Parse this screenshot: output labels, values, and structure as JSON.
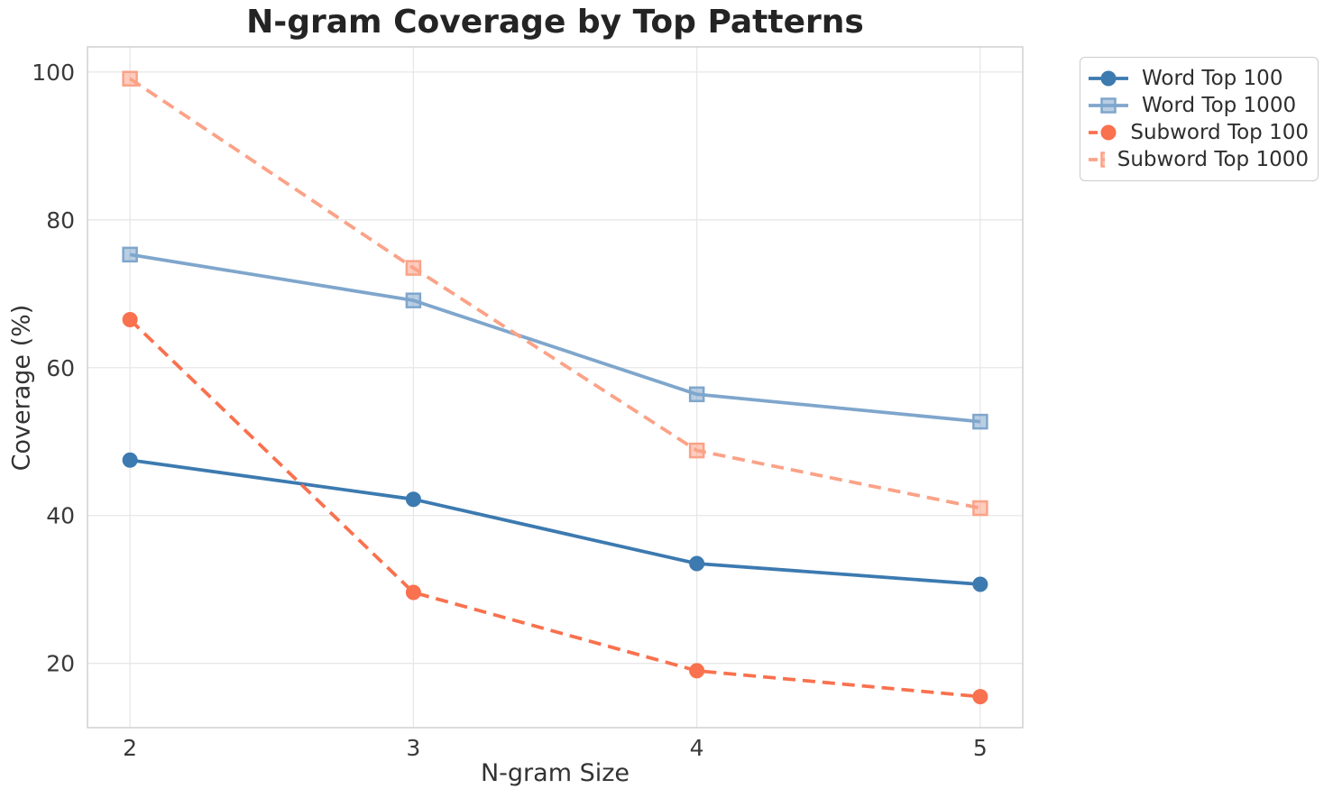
{
  "chart_data": {
    "type": "line",
    "title": "N-gram Coverage by Top Patterns",
    "xlabel": "N-gram Size",
    "ylabel": "Coverage (%)",
    "x": [
      2,
      3,
      4,
      5
    ],
    "series": [
      {
        "name": "Word Top 100",
        "values": [
          47.5,
          42.2,
          33.5,
          30.7
        ],
        "color": "#3c7ab0",
        "line_style": "solid",
        "marker": "circle"
      },
      {
        "name": "Word Top 1000",
        "values": [
          75.3,
          69.1,
          56.4,
          52.7
        ],
        "color": "#7fa6cc",
        "line_style": "solid",
        "marker": "square"
      },
      {
        "name": "Subword Top 100",
        "values": [
          66.5,
          29.6,
          19.0,
          15.5
        ],
        "color": "#f9714e",
        "line_style": "dashed",
        "marker": "circle"
      },
      {
        "name": "Subword Top 1000",
        "values": [
          99.1,
          73.5,
          48.8,
          41.0
        ],
        "color": "#fba287",
        "line_style": "dashed",
        "marker": "square"
      }
    ],
    "xticks": [
      2,
      3,
      4,
      5
    ],
    "yticks": [
      20,
      40,
      60,
      80,
      100
    ],
    "xlim": [
      1.85,
      5.15
    ],
    "ylim": [
      11.3,
      103.4
    ],
    "grid": true,
    "legend_position": "outside-top-right",
    "colors": {
      "grid_line": "#e7e7e7",
      "spine": "#cdcdcd",
      "title_text": "#242424",
      "tick_text": "#3a3a3a",
      "axis_label_text": "#333333",
      "legend_border": "#cccccc",
      "background": "#ffffff"
    }
  }
}
